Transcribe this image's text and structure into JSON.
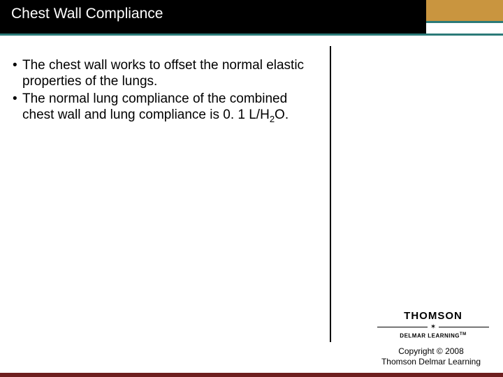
{
  "header": {
    "title": "Chest Wall Compliance",
    "title_color": "#ffffff",
    "black_bg": "#000000",
    "orange_bg": "#c9953f",
    "teal": "#2b7a78"
  },
  "bullets": [
    {
      "text": "The chest wall works to offset the normal elastic properties of the lungs."
    },
    {
      "text_pre": "The normal lung compliance of the combined chest wall and lung compliance is 0. 1 L/H",
      "sub": "2",
      "text_post": "O."
    }
  ],
  "branding": {
    "thomson": "THOMSON",
    "delmar": "DELMAR LEARNING",
    "tm": "TM"
  },
  "copyright": {
    "line1": "Copyright © 2008",
    "line2": "Thomson Delmar Learning"
  },
  "colors": {
    "maroon": "#6e1f1f",
    "text": "#000000",
    "bg": "#ffffff"
  },
  "typography": {
    "title_fontsize": 21,
    "body_fontsize": 19,
    "copyright_fontsize": 12
  }
}
